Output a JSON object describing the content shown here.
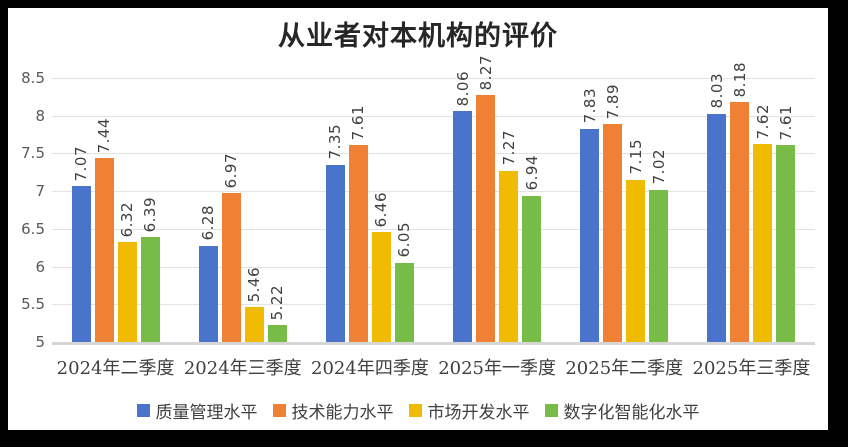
{
  "chart_data": {
    "type": "bar",
    "title": "从业者对本机构的评价",
    "categories": [
      "2024年二季度",
      "2024年三季度",
      "2024年四季度",
      "2025年一季度",
      "2025年二季度",
      "2025年三季度"
    ],
    "series": [
      {
        "name": "质量管理水平",
        "color": "#4A74CB",
        "values": [
          7.07,
          6.28,
          7.35,
          8.06,
          7.83,
          8.03
        ]
      },
      {
        "name": "技术能力水平",
        "color": "#EE8133",
        "values": [
          7.44,
          6.97,
          7.61,
          8.27,
          7.89,
          8.18
        ]
      },
      {
        "name": "市场开发水平",
        "color": "#F1BB03",
        "values": [
          6.32,
          5.46,
          6.46,
          7.27,
          7.15,
          7.62
        ]
      },
      {
        "name": "数字化智能化水平",
        "color": "#76BC46",
        "values": [
          6.39,
          5.22,
          6.05,
          6.94,
          7.02,
          7.61
        ]
      }
    ],
    "ylabel": "",
    "xlabel": "",
    "ylim": [
      5,
      8.5
    ],
    "ytick_step": 0.5,
    "ytick_labels": [
      "8.5",
      "8",
      "7.5",
      "7",
      "6.5",
      "6",
      "5.5",
      "5"
    ],
    "grid": true,
    "gridline_color": "#e2e2e2",
    "axis_line_color": "#d6d6d6",
    "data_labels": "rotated-90-two-decimals",
    "data_label_color": "#404040",
    "tick_label_color": "#595959",
    "title_color": "#262626",
    "legend_position": "bottom",
    "background": "#ffffff",
    "frame_color": "#000000"
  }
}
